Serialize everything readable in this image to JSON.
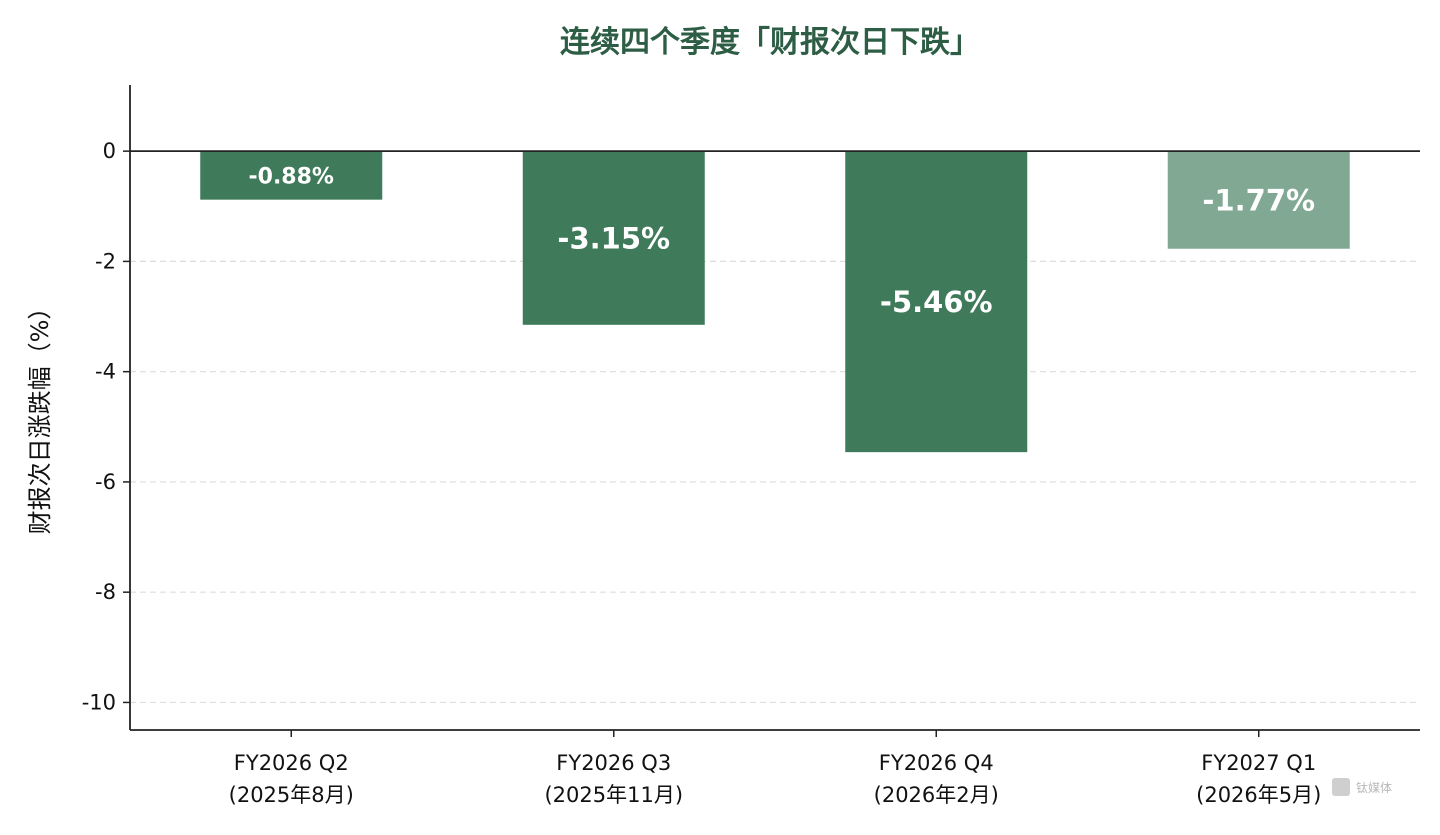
{
  "chart_data": {
    "type": "bar",
    "title": "连续四个季度「财报次日下跌」",
    "ylabel": "财报次日涨跌幅（%）",
    "xlabel": "",
    "ylim": [
      -10.5,
      1.2
    ],
    "yticks": [
      0,
      -2,
      -4,
      -6,
      -8,
      -10
    ],
    "grid": true,
    "categories": [
      {
        "label": "FY2026 Q2",
        "sublabel": "(2025年8月)"
      },
      {
        "label": "FY2026 Q3",
        "sublabel": "(2025年11月)"
      },
      {
        "label": "FY2026 Q4",
        "sublabel": "(2026年2月)"
      },
      {
        "label": "FY2027 Q1",
        "sublabel": "(2026年5月)"
      }
    ],
    "values": [
      -0.88,
      -3.15,
      -5.46,
      -1.77
    ],
    "data_labels": [
      "-0.88%",
      "-3.15%",
      "-5.46%",
      "-1.77%"
    ],
    "bar_colors": [
      "#3f7b5a",
      "#3f7b5a",
      "#3f7b5a",
      "#80a893"
    ],
    "title_color": "#2d5e45",
    "watermark": "钛媒体"
  }
}
